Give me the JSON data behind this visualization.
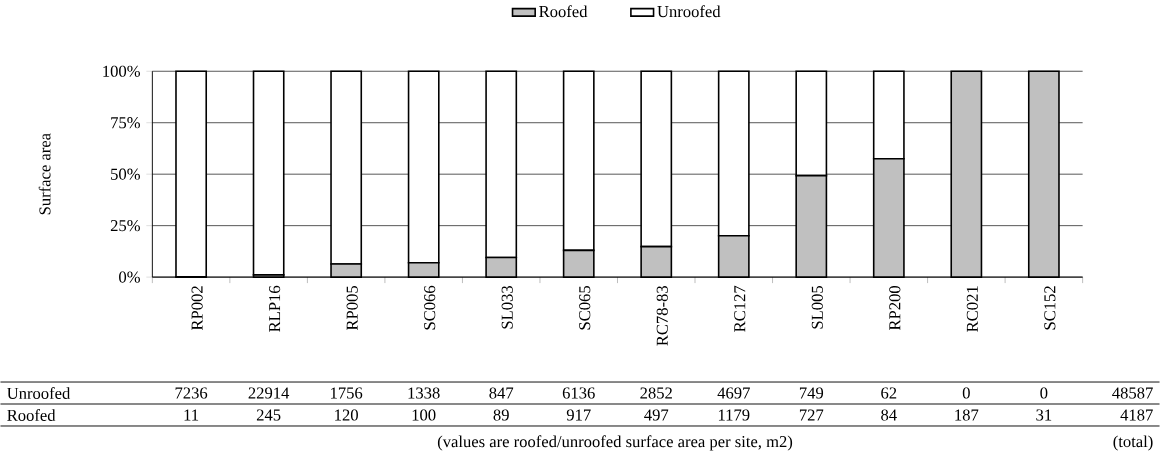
{
  "chart_data": {
    "type": "bar",
    "stacked": true,
    "categories": [
      "RP002",
      "RLP16",
      "RP005",
      "SC066",
      "SL033",
      "SC065",
      "RC78-83",
      "RC127",
      "SL005",
      "RP200",
      "RC021",
      "SC152"
    ],
    "series": [
      {
        "name": "Roofed",
        "color": "#c0c0c0",
        "values": [
          0.2,
          1.1,
          6.4,
          7.0,
          9.5,
          13.0,
          14.8,
          20.1,
          49.3,
          57.5,
          100,
          100
        ]
      },
      {
        "name": "Unroofed",
        "color": "#ffffff",
        "values": [
          99.8,
          98.9,
          93.6,
          93.0,
          90.5,
          87.0,
          85.2,
          79.9,
          50.7,
          42.5,
          0,
          0
        ]
      }
    ],
    "ylabel": "Surface area",
    "ylim": [
      0,
      100
    ],
    "yticks": [
      {
        "value": 0,
        "label": "0%"
      },
      {
        "value": 25,
        "label": "25%"
      },
      {
        "value": 50,
        "label": "50%"
      },
      {
        "value": 75,
        "label": "75%"
      },
      {
        "value": 100,
        "label": "100%"
      }
    ],
    "grid": "y",
    "legend": "top",
    "annotations": [
      "(values are roofed/unroofed surface area per site, m2)",
      "(total)",
      "7236",
      "22914",
      "1756",
      "1338",
      "847",
      "6136",
      "2852",
      "4697",
      "749",
      "62",
      "0",
      "0",
      "48587",
      "11",
      "245",
      "120",
      "100",
      "89",
      "917",
      "497",
      "1179",
      "727",
      "84",
      "187",
      "31",
      "4187"
    ]
  }
}
